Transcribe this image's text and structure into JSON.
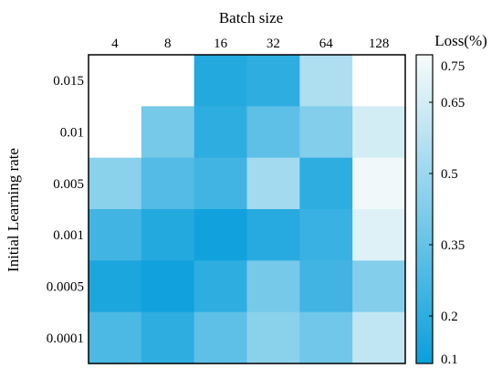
{
  "chart_data": {
    "type": "heatmap",
    "title": "",
    "xlabel": "Batch size",
    "ylabel": "Initial Learning rate",
    "x_categories": [
      "4",
      "8",
      "16",
      "32",
      "64",
      "128"
    ],
    "y_categories": [
      "0.015",
      "0.01",
      "0.005",
      "0.001",
      "0.0005",
      "0.0001"
    ],
    "values": [
      [
        null,
        null,
        0.17,
        0.2,
        0.55,
        null
      ],
      [
        null,
        0.4,
        0.2,
        0.33,
        0.43,
        0.65
      ],
      [
        0.45,
        0.3,
        0.25,
        0.52,
        0.2,
        0.73
      ],
      [
        0.25,
        0.17,
        0.12,
        0.18,
        0.23,
        0.68
      ],
      [
        0.15,
        0.12,
        0.2,
        0.4,
        0.25,
        0.43
      ],
      [
        0.28,
        0.2,
        0.33,
        0.45,
        0.38,
        0.6
      ]
    ],
    "colorbar": {
      "label": "Loss(%)",
      "range": [
        0.1,
        0.75
      ],
      "ticks": [
        "0.75",
        "0.65",
        "0.5",
        "0.35",
        "0.2",
        "0.1"
      ],
      "color_low": "#0a9fdc",
      "color_high": "#f7fbfa"
    },
    "missing_color": "#ffffff",
    "grid": false
  }
}
